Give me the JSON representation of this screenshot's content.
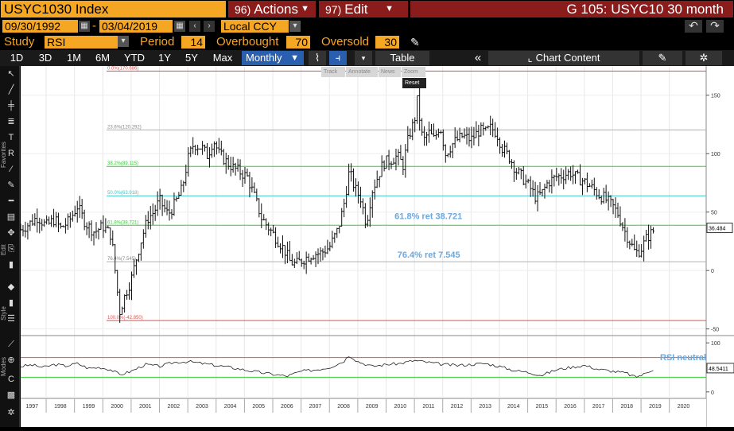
{
  "header": {
    "ticker": "USYC1030 Index",
    "actions_num": "96)",
    "actions_label": "Actions",
    "edit_num": "97)",
    "edit_label": "Edit",
    "title": "G 105: USYC10 30 month"
  },
  "range": {
    "start": "09/30/1992",
    "dash": "-",
    "end": "03/04/2019",
    "currency": "Local CCY"
  },
  "study": {
    "label": "Study",
    "value": "RSI",
    "period_label": "Period",
    "period": "14",
    "overbought_label": "Overbought",
    "overbought": "70",
    "oversold_label": "Oversold",
    "oversold": "30"
  },
  "toolbar": {
    "periods": [
      "1D",
      "3D",
      "1M",
      "6M",
      "YTD",
      "1Y",
      "5Y",
      "Max"
    ],
    "frequency": "Monthly",
    "table": "Table",
    "chart_content": "Chart Content"
  },
  "zoom_tools": [
    "Track",
    "Annotate",
    "News",
    "Zoom"
  ],
  "reset_label": "Reset",
  "sidebar_labels": {
    "favorites": "Favorites",
    "edit": "Edit",
    "style": "Style",
    "modes": "Modes"
  },
  "colors": {
    "accent": "#f5a623",
    "menu": "#8a1c1c",
    "price": "#000000",
    "fib_red": "#e05050",
    "fib_green": "#33cc33",
    "fib_cyan": "#33cccc",
    "fib_grey": "#b0b0b0",
    "annotation": "#6aa8e0"
  },
  "chart_data": [
    {
      "type": "ohlc",
      "frequency": "Monthly",
      "ylim": [
        -55,
        175
      ],
      "y_ticks": [
        -50,
        0,
        50,
        100,
        150
      ],
      "x_ticks": [
        "1997",
        "1998",
        "1999",
        "2000",
        "2001",
        "2002",
        "2003",
        "2004",
        "2005",
        "2006",
        "2007",
        "2008",
        "2009",
        "2010",
        "2011",
        "2012",
        "2013",
        "2014",
        "2015",
        "2016",
        "2017",
        "2018",
        "2019",
        "2020"
      ],
      "x_start": 1996.6,
      "x_end": 2020.8,
      "last_value_label": "36.484",
      "last_value": 36.484,
      "series": [
        {
          "points": [
            [
              1996.6,
              35
            ],
            [
              1996.9,
              40
            ],
            [
              1997.2,
              46
            ],
            [
              1997.5,
              38
            ],
            [
              1997.8,
              44
            ],
            [
              1998.0,
              36
            ],
            [
              1998.3,
              42
            ],
            [
              1998.6,
              55
            ],
            [
              1998.9,
              40
            ],
            [
              1999.2,
              33
            ],
            [
              1999.5,
              38
            ],
            [
              1999.8,
              30
            ],
            [
              2000.0,
              -15
            ],
            [
              2000.1,
              -35
            ],
            [
              2000.3,
              -20
            ],
            [
              2000.5,
              -8
            ],
            [
              2000.7,
              12
            ],
            [
              2000.9,
              30
            ],
            [
              2001.1,
              45
            ],
            [
              2001.3,
              50
            ],
            [
              2001.5,
              60
            ],
            [
              2001.8,
              48
            ],
            [
              2002.0,
              55
            ],
            [
              2002.3,
              70
            ],
            [
              2002.5,
              95
            ],
            [
              2002.7,
              108
            ],
            [
              2003.0,
              105
            ],
            [
              2003.2,
              98
            ],
            [
              2003.4,
              112
            ],
            [
              2003.6,
              100
            ],
            [
              2003.9,
              92
            ],
            [
              2004.1,
              88
            ],
            [
              2004.3,
              85
            ],
            [
              2004.6,
              80
            ],
            [
              2004.9,
              60
            ],
            [
              2005.1,
              45
            ],
            [
              2005.4,
              35
            ],
            [
              2005.7,
              25
            ],
            [
              2005.9,
              18
            ],
            [
              2006.1,
              8
            ],
            [
              2006.3,
              5
            ],
            [
              2006.6,
              10
            ],
            [
              2006.9,
              14
            ],
            [
              2007.2,
              15
            ],
            [
              2007.5,
              20
            ],
            [
              2007.8,
              35
            ],
            [
              2008.0,
              55
            ],
            [
              2008.2,
              85
            ],
            [
              2008.4,
              70
            ],
            [
              2008.6,
              62
            ],
            [
              2008.8,
              40
            ],
            [
              2009.0,
              68
            ],
            [
              2009.2,
              80
            ],
            [
              2009.4,
              92
            ],
            [
              2009.7,
              95
            ],
            [
              2009.9,
              98
            ],
            [
              2010.1,
              90
            ],
            [
              2010.3,
              115
            ],
            [
              2010.5,
              128
            ],
            [
              2010.6,
              145
            ],
            [
              2010.8,
              110
            ],
            [
              2011.0,
              118
            ],
            [
              2011.2,
              112
            ],
            [
              2011.4,
              125
            ],
            [
              2011.6,
              100
            ],
            [
              2011.9,
              110
            ],
            [
              2012.2,
              115
            ],
            [
              2012.5,
              112
            ],
            [
              2012.8,
              120
            ],
            [
              2013.0,
              118
            ],
            [
              2013.2,
              122
            ],
            [
              2013.4,
              118
            ],
            [
              2013.6,
              105
            ],
            [
              2013.9,
              95
            ],
            [
              2014.1,
              85
            ],
            [
              2014.3,
              80
            ],
            [
              2014.6,
              70
            ],
            [
              2014.8,
              62
            ],
            [
              2015.0,
              66
            ],
            [
              2015.2,
              75
            ],
            [
              2015.5,
              80
            ],
            [
              2015.8,
              82
            ],
            [
              2016.0,
              84
            ],
            [
              2016.2,
              80
            ],
            [
              2016.5,
              76
            ],
            [
              2016.8,
              70
            ],
            [
              2017.0,
              65
            ],
            [
              2017.2,
              62
            ],
            [
              2017.5,
              55
            ],
            [
              2017.7,
              48
            ],
            [
              2017.9,
              35
            ],
            [
              2018.1,
              25
            ],
            [
              2018.3,
              15
            ],
            [
              2018.5,
              18
            ],
            [
              2018.7,
              28
            ],
            [
              2018.9,
              33
            ],
            [
              2019.0,
              36.5
            ]
          ]
        }
      ],
      "levels": [
        {
          "label": "0.0%(170.686)",
          "value": 170.686,
          "color": "#e05050"
        },
        {
          "label": "23.6%(120.292)",
          "value": 120.292,
          "color": "#b0b0b0"
        },
        {
          "label": "38.2%(89.115)",
          "value": 89.115,
          "color": "#33cc33"
        },
        {
          "label": "50.0%(63.918)",
          "value": 63.918,
          "color": "#33cccc"
        },
        {
          "label": "61.8%(38.721)",
          "value": 38.721,
          "color": "#33cc33"
        },
        {
          "label": "76.4%(7.545)",
          "value": 7.545,
          "color": "#b0b0b0"
        },
        {
          "label": "100.0%(-42.850)",
          "value": -42.85,
          "color": "#e05050"
        }
      ],
      "annotations": [
        {
          "text": "61.8% ret 38.721",
          "x": 2009.8,
          "y": 44
        },
        {
          "text": "76.4% ret 7.545",
          "x": 2009.9,
          "y": 11
        }
      ]
    },
    {
      "type": "line",
      "title": "RSI",
      "ylim": [
        -10,
        110
      ],
      "y_ticks": [
        0,
        100
      ],
      "overbought": 70,
      "oversold": 30,
      "last_value_label": "48.5411",
      "last_value": 48.5411,
      "annotation": "RSI neutral",
      "x": [
        1996.6,
        1997.0,
        1997.4,
        1997.8,
        1998.2,
        1998.6,
        1999.0,
        1999.4,
        1999.8,
        2000.1,
        2000.5,
        2001.0,
        2001.5,
        2002.0,
        2002.5,
        2003.0,
        2003.5,
        2004.0,
        2004.5,
        2005.0,
        2005.5,
        2006.0,
        2006.5,
        2007.0,
        2007.5,
        2008.0,
        2008.2,
        2008.5,
        2009.0,
        2009.5,
        2010.0,
        2010.5,
        2011.0,
        2011.5,
        2012.0,
        2012.5,
        2013.0,
        2013.5,
        2014.0,
        2014.5,
        2015.0,
        2015.5,
        2016.0,
        2016.5,
        2017.0,
        2017.5,
        2018.0,
        2018.3,
        2018.6,
        2019.0
      ],
      "y": [
        52,
        55,
        50,
        56,
        53,
        58,
        48,
        50,
        45,
        35,
        42,
        56,
        52,
        60,
        62,
        58,
        54,
        50,
        45,
        40,
        36,
        32,
        42,
        45,
        50,
        62,
        75,
        62,
        52,
        56,
        58,
        64,
        60,
        56,
        54,
        56,
        58,
        52,
        44,
        40,
        34,
        45,
        50,
        54,
        46,
        42,
        38,
        30,
        36,
        48.5
      ]
    }
  ]
}
